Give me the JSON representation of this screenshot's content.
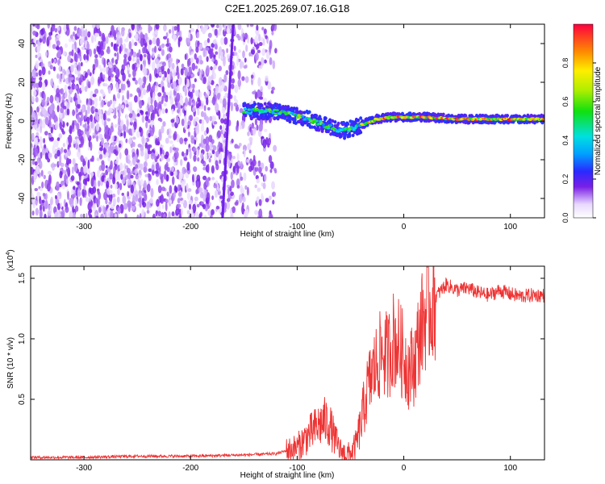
{
  "figure": {
    "title": "C2E1.2025.269.07.16.G18"
  },
  "chart_data": [
    {
      "type": "heatmap",
      "title": "C2E1.2025.269.07.16.G18",
      "xlabel": "Height of straight line (km)",
      "ylabel": "Frequency (Hz)",
      "xlim": [
        -350,
        132
      ],
      "ylim": [
        -50,
        50
      ],
      "xticks": [
        -300,
        -200,
        -100,
        0,
        100
      ],
      "yticks": [
        -40,
        -20,
        0,
        20,
        40
      ],
      "colorbar": {
        "label": "Normalized spectral amplitude",
        "range": [
          0.0,
          1.0
        ],
        "ticks": [
          0.0,
          0.2,
          0.4,
          0.6,
          0.8
        ]
      },
      "tracked_frequency": {
        "x": [
          -150,
          -125,
          -110,
          -95,
          -85,
          -75,
          -65,
          -55,
          -45,
          -35,
          -25,
          -10,
          0,
          20,
          50,
          80,
          110,
          132
        ],
        "y": [
          5,
          5,
          4,
          2,
          0,
          -2,
          -4,
          -5,
          -3,
          -1,
          1,
          2,
          2,
          2,
          1,
          1,
          1,
          1
        ]
      },
      "noise_region_end_x": -140
    },
    {
      "type": "line",
      "xlabel": "Height of straight line (km)",
      "ylabel": "SNR (10 * v/v)",
      "y_multiplier": "(x10",
      "y_multiplier_exp": "4",
      "xlim": [
        -350,
        132
      ],
      "ylim": [
        0.0,
        1.6
      ],
      "xticks": [
        -300,
        -200,
        -100,
        0,
        100
      ],
      "yticks": [
        0.5,
        1.0,
        1.5
      ],
      "series": [
        {
          "name": "SNR",
          "color": "#ee3333",
          "x": [
            -350,
            -300,
            -250,
            -200,
            -150,
            -120,
            -100,
            -90,
            -80,
            -75,
            -70,
            -65,
            -60,
            -55,
            -50,
            -45,
            -40,
            -35,
            -30,
            -25,
            -20,
            -15,
            -10,
            -5,
            0,
            5,
            10,
            15,
            20,
            30,
            40,
            50,
            60,
            70,
            80,
            90,
            100,
            110,
            120,
            132
          ],
          "y": [
            0.02,
            0.02,
            0.03,
            0.03,
            0.04,
            0.05,
            0.1,
            0.2,
            0.28,
            0.32,
            0.3,
            0.18,
            0.08,
            0.05,
            0.05,
            0.12,
            0.3,
            0.55,
            0.7,
            0.8,
            0.9,
            0.85,
            1.0,
            0.95,
            0.85,
            0.75,
            0.8,
            1.05,
            1.2,
            1.35,
            1.45,
            1.4,
            1.42,
            1.38,
            1.36,
            1.4,
            1.37,
            1.35,
            1.36,
            1.36
          ]
        }
      ]
    }
  ]
}
